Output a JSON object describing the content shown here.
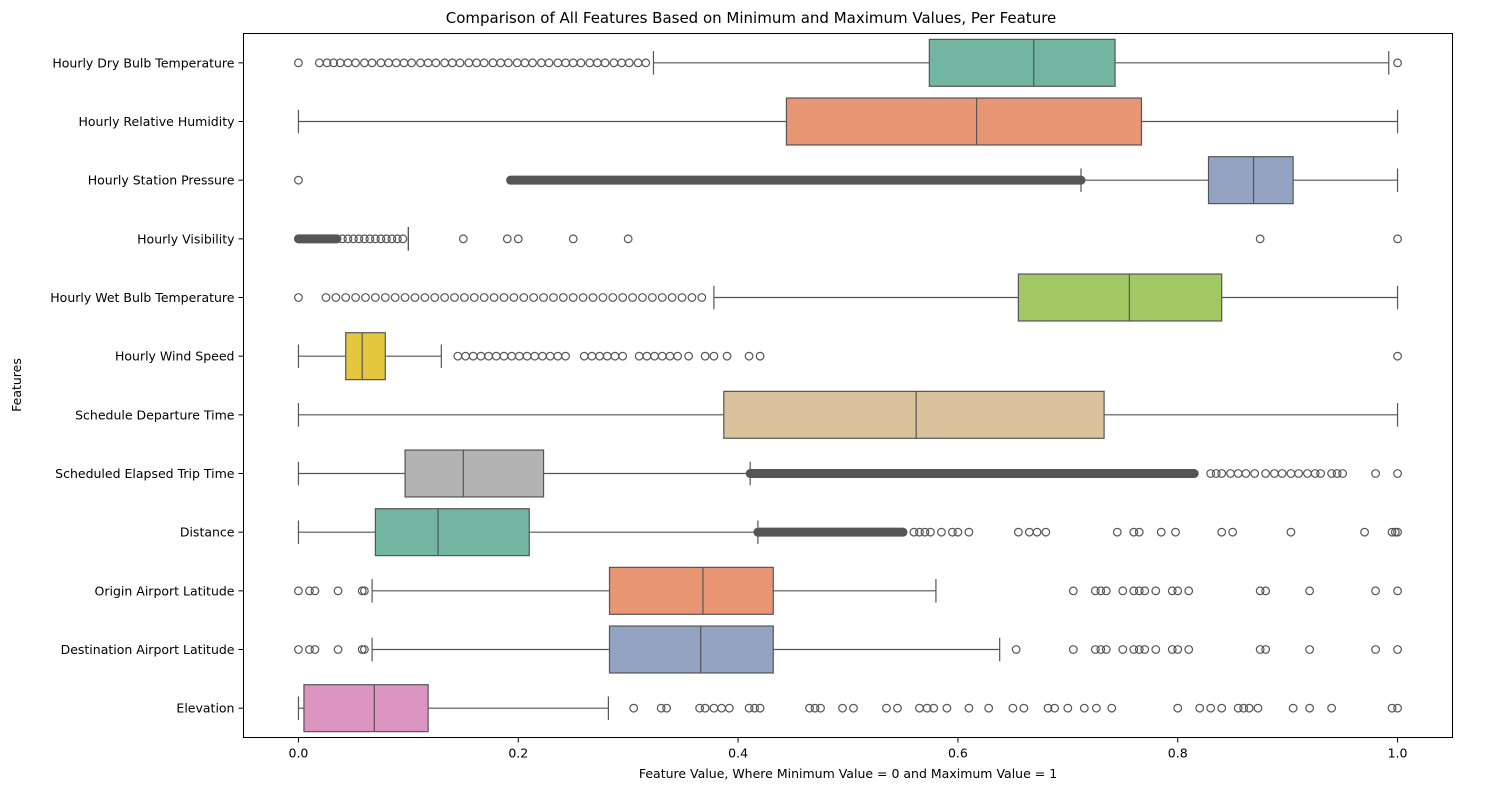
{
  "chart_data": {
    "type": "boxplot",
    "orientation": "horizontal",
    "title": "Comparison of All Features Based on Minimum and Maximum Values, Per Feature",
    "xlabel": "Feature Value, Where Minimum Value = 0 and Maximum Value = 1",
    "ylabel": "Features",
    "xlim": [
      -0.05,
      1.05
    ],
    "xticks": [
      "0.0",
      "0.2",
      "0.4",
      "0.6",
      "0.8",
      "1.0"
    ],
    "xtick_values": [
      0.0,
      0.2,
      0.4,
      0.6,
      0.8,
      1.0
    ],
    "grid": false,
    "series": [
      {
        "name": "Hourly Dry Bulb Temperature",
        "color": "#72b6a1",
        "whislo": 0.323,
        "q1": 0.574,
        "med": 0.669,
        "q3": 0.743,
        "whishi": 0.992,
        "outliers": [
          0.0,
          0.019,
          0.026,
          0.032,
          0.038,
          0.045,
          0.052,
          0.06,
          0.067,
          0.075,
          0.082,
          0.089,
          0.096,
          0.103,
          0.111,
          0.118,
          0.125,
          0.133,
          0.14,
          0.147,
          0.155,
          0.162,
          0.169,
          0.177,
          0.184,
          0.191,
          0.199,
          0.206,
          0.213,
          0.221,
          0.228,
          0.236,
          0.243,
          0.25,
          0.257,
          0.265,
          0.272,
          0.279,
          0.287,
          0.294,
          0.301,
          0.309,
          0.316,
          1.0
        ]
      },
      {
        "name": "Hourly Relative Humidity",
        "color": "#e99675",
        "whislo": 0.0,
        "q1": 0.444,
        "med": 0.617,
        "q3": 0.767,
        "whishi": 1.0,
        "outliers": []
      },
      {
        "name": "Hourly Station Pressure",
        "color": "#95a3c3",
        "whislo": 0.712,
        "q1": 0.828,
        "med": 0.869,
        "q3": 0.905,
        "whishi": 1.0,
        "outliers": [
          0.0
        ],
        "dense_outliers": [
          0.193,
          0.712
        ]
      },
      {
        "name": "Hourly Visibility",
        "color": "#a4c8e0",
        "whislo": 0.1,
        "q1": 0.1,
        "med": 0.1,
        "q3": 0.1,
        "whishi": 0.1,
        "outliers": [
          0.04,
          0.045,
          0.05,
          0.055,
          0.06,
          0.065,
          0.07,
          0.075,
          0.08,
          0.085,
          0.09,
          0.095,
          0.15,
          0.19,
          0.2,
          0.25,
          0.3,
          0.875,
          1.0
        ],
        "dense_outliers": [
          0.0,
          0.035
        ]
      },
      {
        "name": "Hourly Wet Bulb Temperature",
        "color": "#a2c865",
        "whislo": 0.378,
        "q1": 0.655,
        "med": 0.756,
        "q3": 0.84,
        "whishi": 1.0,
        "outliers": [
          0.0,
          0.025,
          0.034,
          0.043,
          0.052,
          0.061,
          0.07,
          0.079,
          0.088,
          0.097,
          0.106,
          0.115,
          0.124,
          0.133,
          0.142,
          0.151,
          0.16,
          0.169,
          0.178,
          0.187,
          0.196,
          0.205,
          0.214,
          0.223,
          0.232,
          0.241,
          0.25,
          0.259,
          0.268,
          0.277,
          0.286,
          0.295,
          0.304,
          0.313,
          0.322,
          0.331,
          0.34,
          0.349,
          0.358,
          0.367
        ]
      },
      {
        "name": "Hourly Wind Speed",
        "color": "#e5c73f",
        "whislo": 0.0,
        "q1": 0.043,
        "med": 0.058,
        "q3": 0.079,
        "whishi": 0.13,
        "outliers": [
          0.145,
          0.152,
          0.159,
          0.166,
          0.173,
          0.18,
          0.187,
          0.194,
          0.201,
          0.208,
          0.215,
          0.222,
          0.229,
          0.236,
          0.243,
          0.26,
          0.267,
          0.274,
          0.281,
          0.288,
          0.295,
          0.31,
          0.317,
          0.324,
          0.331,
          0.338,
          0.345,
          0.355,
          0.37,
          0.378,
          0.39,
          0.41,
          0.42,
          1.0
        ]
      },
      {
        "name": "Schedule Departure Time",
        "color": "#d9c29c",
        "whislo": 0.0,
        "q1": 0.387,
        "med": 0.562,
        "q3": 0.733,
        "whishi": 1.0,
        "outliers": []
      },
      {
        "name": "Scheduled Elapsed Trip Time",
        "color": "#b3b3b3",
        "whislo": 0.0,
        "q1": 0.097,
        "med": 0.15,
        "q3": 0.223,
        "whishi": 0.411,
        "outliers": [
          0.83,
          0.835,
          0.84,
          0.848,
          0.855,
          0.862,
          0.87,
          0.88,
          0.888,
          0.895,
          0.903,
          0.91,
          0.918,
          0.925,
          0.93,
          0.94,
          0.945,
          0.95,
          0.98,
          1.0
        ],
        "dense_outliers": [
          0.411,
          0.815
        ]
      },
      {
        "name": "Distance",
        "color": "#72b6a1",
        "whislo": 0.0,
        "q1": 0.07,
        "med": 0.127,
        "q3": 0.21,
        "whishi": 0.418,
        "outliers": [
          0.56,
          0.565,
          0.57,
          0.575,
          0.585,
          0.595,
          0.6,
          0.61,
          0.655,
          0.665,
          0.672,
          0.68,
          0.745,
          0.76,
          0.765,
          0.785,
          0.798,
          0.84,
          0.85,
          0.903,
          0.97,
          0.995,
          0.998,
          1.0
        ],
        "dense_outliers": [
          0.418,
          0.55
        ]
      },
      {
        "name": "Origin Airport Latitude",
        "color": "#e99675",
        "whislo": 0.067,
        "q1": 0.283,
        "med": 0.368,
        "q3": 0.432,
        "whishi": 0.58,
        "outliers": [
          0.0,
          0.01,
          0.015,
          0.036,
          0.058,
          0.06,
          0.705,
          0.725,
          0.73,
          0.735,
          0.75,
          0.76,
          0.765,
          0.77,
          0.78,
          0.795,
          0.8,
          0.81,
          0.875,
          0.88,
          0.92,
          0.98,
          1.0
        ]
      },
      {
        "name": "Destination Airport Latitude",
        "color": "#95a3c3",
        "whislo": 0.067,
        "q1": 0.283,
        "med": 0.366,
        "q3": 0.432,
        "whishi": 0.638,
        "outliers": [
          0.0,
          0.01,
          0.015,
          0.036,
          0.058,
          0.06,
          0.653,
          0.705,
          0.725,
          0.73,
          0.735,
          0.75,
          0.76,
          0.765,
          0.77,
          0.78,
          0.795,
          0.8,
          0.81,
          0.875,
          0.88,
          0.92,
          0.98,
          1.0
        ]
      },
      {
        "name": "Elevation",
        "color": "#dc94c0",
        "whislo": 0.0,
        "q1": 0.005,
        "med": 0.069,
        "q3": 0.118,
        "whishi": 0.282,
        "outliers": [
          0.305,
          0.33,
          0.335,
          0.365,
          0.37,
          0.378,
          0.385,
          0.392,
          0.41,
          0.415,
          0.42,
          0.465,
          0.47,
          0.475,
          0.495,
          0.505,
          0.535,
          0.545,
          0.565,
          0.572,
          0.578,
          0.59,
          0.61,
          0.628,
          0.65,
          0.66,
          0.682,
          0.688,
          0.7,
          0.715,
          0.726,
          0.74,
          0.8,
          0.82,
          0.83,
          0.84,
          0.855,
          0.86,
          0.865,
          0.873,
          0.905,
          0.92,
          0.94,
          0.995,
          1.0
        ]
      }
    ]
  }
}
